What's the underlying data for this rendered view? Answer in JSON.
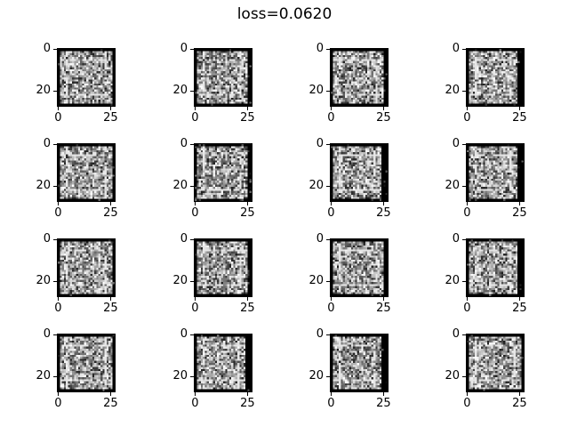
{
  "figure": {
    "suptitle": "loss=0.0620"
  },
  "chart_data": {
    "type": "image-grid",
    "title": "loss=0.0620",
    "rows": 4,
    "cols": 4,
    "image_size": [
      28,
      28
    ],
    "colormap": "gray",
    "x_ticks": [
      "0",
      "25"
    ],
    "y_ticks": [
      "0",
      "20"
    ],
    "x_tick_values": [
      0,
      25
    ],
    "y_tick_values": [
      0,
      20
    ],
    "panels": [
      {
        "row": 0,
        "col": 0,
        "seed": 11
      },
      {
        "row": 0,
        "col": 1,
        "seed": 23
      },
      {
        "row": 0,
        "col": 2,
        "seed": 37
      },
      {
        "row": 0,
        "col": 3,
        "seed": 41
      },
      {
        "row": 1,
        "col": 0,
        "seed": 53
      },
      {
        "row": 1,
        "col": 1,
        "seed": 67
      },
      {
        "row": 1,
        "col": 2,
        "seed": 71
      },
      {
        "row": 1,
        "col": 3,
        "seed": 83
      },
      {
        "row": 2,
        "col": 0,
        "seed": 97
      },
      {
        "row": 2,
        "col": 1,
        "seed": 101
      },
      {
        "row": 2,
        "col": 2,
        "seed": 113
      },
      {
        "row": 2,
        "col": 3,
        "seed": 127
      },
      {
        "row": 3,
        "col": 0,
        "seed": 131
      },
      {
        "row": 3,
        "col": 1,
        "seed": 149
      },
      {
        "row": 3,
        "col": 2,
        "seed": 151
      },
      {
        "row": 3,
        "col": 3,
        "seed": 163
      }
    ]
  }
}
